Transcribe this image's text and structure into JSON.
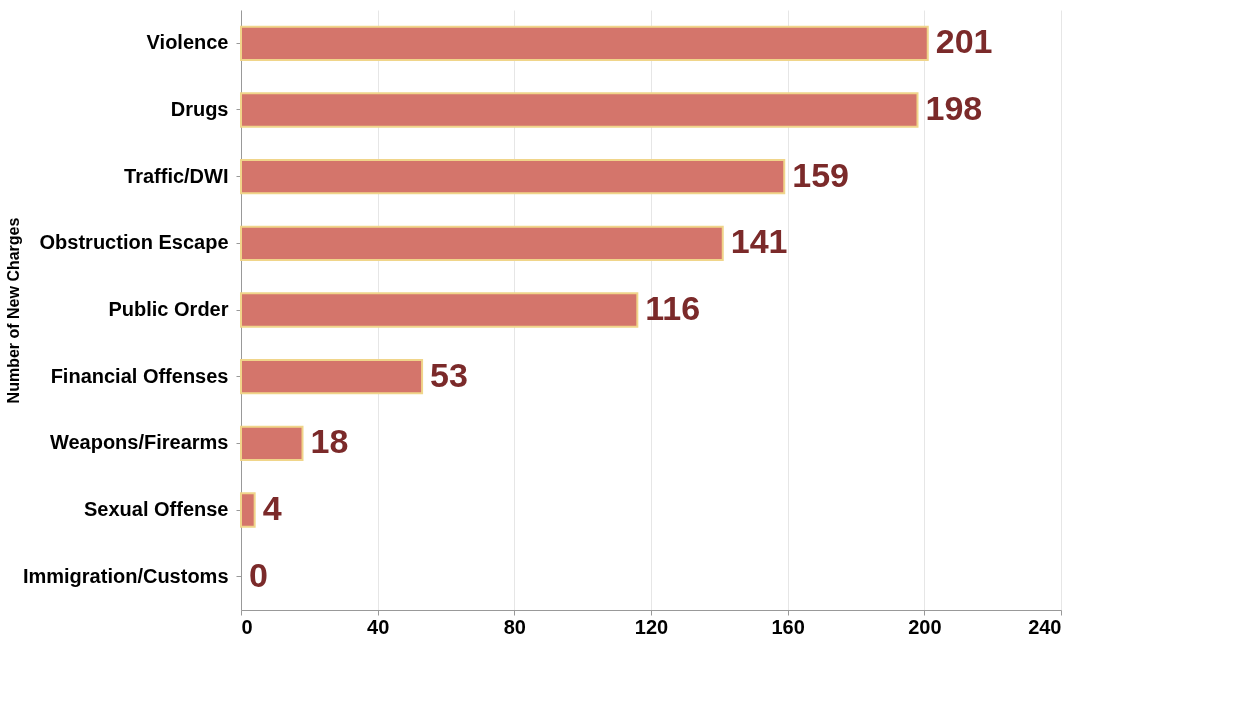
{
  "chart_data": {
    "type": "bar",
    "orientation": "horizontal",
    "ylabel": "Number of New Charges",
    "categories": [
      "Violence",
      "Drugs",
      "Traffic/DWI",
      "Obstruction Escape",
      "Public Order",
      "Financial Offenses",
      "Weapons/Firearms",
      "Sexual Offense",
      "Immigration/Customs"
    ],
    "values": [
      201,
      198,
      159,
      141,
      116,
      53,
      18,
      4,
      0
    ],
    "color": "#d4756b",
    "xlim": [
      0,
      240
    ],
    "xticks": [
      0,
      40,
      80,
      120,
      160,
      200,
      240
    ],
    "grid": "x",
    "data_labels": true
  }
}
